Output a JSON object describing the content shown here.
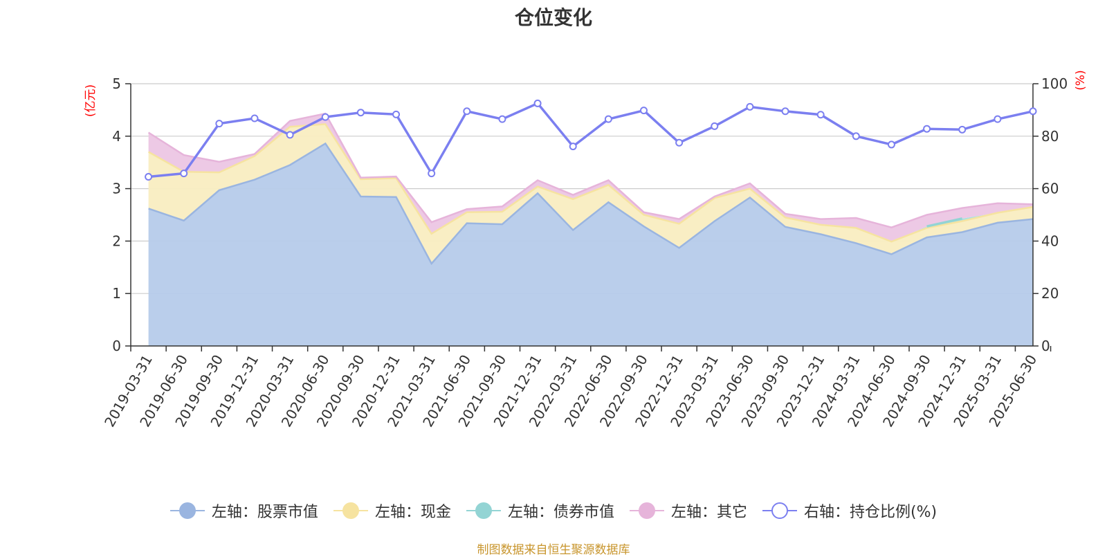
{
  "chart_data": {
    "type": "area",
    "title": "仓位变化",
    "left_axis_unit": "(亿元)",
    "right_axis_unit": "(%)",
    "ylim_left": [
      0,
      5
    ],
    "ylim_right": [
      0,
      100
    ],
    "left_ticks": [
      "0",
      "1",
      "2",
      "3",
      "4",
      "5"
    ],
    "right_ticks": [
      "0",
      "20",
      "40",
      "60",
      "80",
      "100"
    ],
    "grid": true,
    "legend_position": "bottom",
    "categories": [
      "2019-03-31",
      "2019-06-30",
      "2019-09-30",
      "2019-12-31",
      "2020-03-31",
      "2020-06-30",
      "2020-09-30",
      "2020-12-31",
      "2021-03-31",
      "2021-06-30",
      "2021-09-30",
      "2021-12-31",
      "2022-03-31",
      "2022-06-30",
      "2022-09-30",
      "2022-12-31",
      "2023-03-31",
      "2023-06-30",
      "2023-09-30",
      "2023-12-31",
      "2024-03-31",
      "2024-06-30",
      "2024-09-30",
      "2024-12-31",
      "2025-03-31",
      "2025-06-30"
    ],
    "series": [
      {
        "name": "左轴：股票市值",
        "axis": "left",
        "color": "#9ab5e0",
        "fill": "#b6cbea",
        "values": [
          2.62,
          2.39,
          2.97,
          3.17,
          3.45,
          3.86,
          2.85,
          2.84,
          1.57,
          2.34,
          2.32,
          2.91,
          2.21,
          2.74,
          2.28,
          1.87,
          2.38,
          2.83,
          2.27,
          2.13,
          1.96,
          1.75,
          2.07,
          2.17,
          2.35,
          2.42
        ]
      },
      {
        "name": "左轴：现金",
        "axis": "left",
        "color": "#f6e3a0",
        "fill": "#f9edc1",
        "values": [
          1.08,
          0.93,
          0.34,
          0.45,
          0.73,
          0.37,
          0.33,
          0.36,
          0.57,
          0.21,
          0.24,
          0.13,
          0.59,
          0.33,
          0.22,
          0.46,
          0.44,
          0.17,
          0.18,
          0.18,
          0.29,
          0.24,
          0.18,
          0.21,
          0.19,
          0.23
        ]
      },
      {
        "name": "左轴：债券市值",
        "axis": "left",
        "color": "#93d4d4",
        "fill": "#a9dede",
        "values": [
          0,
          0,
          0,
          0,
          0,
          0,
          0,
          0,
          0,
          0,
          0,
          0,
          0,
          0,
          0,
          0,
          0,
          0,
          0,
          0,
          0,
          0,
          0.03,
          0.05,
          0,
          0
        ]
      },
      {
        "name": "左轴：其它",
        "axis": "left",
        "color": "#e6b4da",
        "fill": "#ecc6e4",
        "values": [
          0.37,
          0.32,
          0.2,
          0.04,
          0.11,
          0.2,
          0.03,
          0.03,
          0.22,
          0.06,
          0.1,
          0.12,
          0.08,
          0.09,
          0.05,
          0.09,
          0.03,
          0.1,
          0.07,
          0.11,
          0.19,
          0.27,
          0.22,
          0.2,
          0.18,
          0.05
        ]
      },
      {
        "name": "右轴：持仓比例(%)",
        "axis": "right",
        "color": "#7b7ff0",
        "values": [
          64.5,
          65.8,
          84.8,
          86.8,
          80.5,
          87.3,
          89.0,
          88.3,
          65.8,
          89.5,
          86.5,
          92.5,
          76.1,
          86.5,
          89.8,
          77.5,
          83.8,
          91.2,
          89.5,
          88.2,
          80.0,
          76.8,
          82.8,
          82.5,
          86.5,
          89.5
        ]
      }
    ]
  },
  "source_note": "制图数据来自恒生聚源数据库"
}
